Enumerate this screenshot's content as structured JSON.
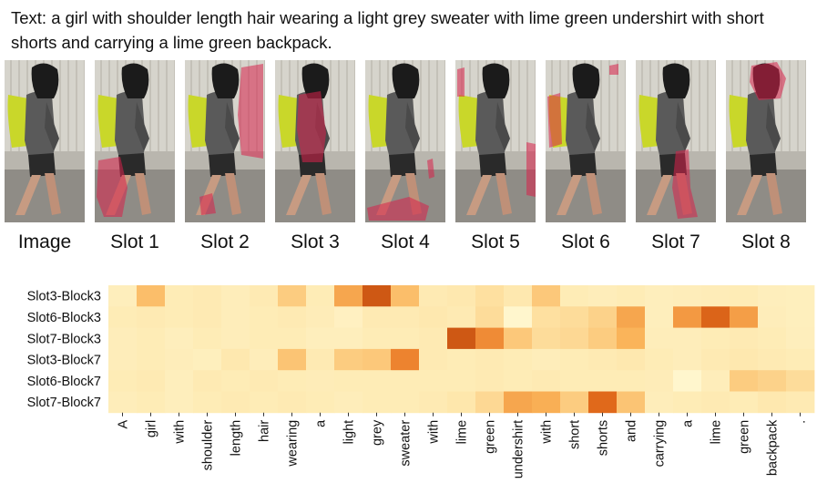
{
  "caption": "Text: a girl with shoulder length hair wearing a light grey sweater with lime green undershirt with short shorts and carrying a lime green backpack.",
  "panels": [
    {
      "label": "Image",
      "highlight": "none"
    },
    {
      "label": "Slot 1",
      "highlight": "legs"
    },
    {
      "label": "Slot 2",
      "highlight": "background-right"
    },
    {
      "label": "Slot 3",
      "highlight": "torso"
    },
    {
      "label": "Slot 4",
      "highlight": "ground"
    },
    {
      "label": "Slot 5",
      "highlight": "right-edge"
    },
    {
      "label": "Slot 6",
      "highlight": "backpack-left"
    },
    {
      "label": "Slot 7",
      "highlight": "leg-right"
    },
    {
      "label": "Slot 8",
      "highlight": "head"
    }
  ],
  "colors": {
    "attention_overlay": "#d8204a",
    "backpack": "#c9d72a",
    "sweater": "#5a5a5a",
    "low": "#fff7c8",
    "high": "#b33a06"
  },
  "chart_data": {
    "type": "heatmap",
    "rows": [
      "Slot3-Block3",
      "Slot6-Block3",
      "Slot7-Block3",
      "Slot3-Block7",
      "Slot6-Block7",
      "Slot7-Block7"
    ],
    "columns": [
      "A",
      "girl",
      "with",
      "shoulder",
      "length",
      "hair",
      "wearing",
      "a",
      "light",
      "grey",
      "sweater",
      "with",
      "lime",
      "green",
      "undershirt",
      "with",
      "short",
      "shorts",
      "and",
      "carrying",
      "a",
      "lime",
      "green",
      "backpack",
      "."
    ],
    "values": [
      [
        0.15,
        0.45,
        0.18,
        0.2,
        0.16,
        0.2,
        0.38,
        0.18,
        0.55,
        0.85,
        0.45,
        0.2,
        0.22,
        0.28,
        0.22,
        0.4,
        0.18,
        0.16,
        0.18,
        0.15,
        0.16,
        0.17,
        0.18,
        0.15,
        0.14
      ],
      [
        0.18,
        0.2,
        0.18,
        0.2,
        0.16,
        0.18,
        0.2,
        0.17,
        0.12,
        0.2,
        0.2,
        0.22,
        0.2,
        0.3,
        0.05,
        0.28,
        0.3,
        0.35,
        0.55,
        0.15,
        0.6,
        0.8,
        0.58,
        0.16,
        0.14
      ],
      [
        0.16,
        0.18,
        0.15,
        0.18,
        0.16,
        0.18,
        0.18,
        0.15,
        0.15,
        0.18,
        0.18,
        0.2,
        0.85,
        0.65,
        0.4,
        0.3,
        0.32,
        0.38,
        0.5,
        0.16,
        0.16,
        0.18,
        0.2,
        0.18,
        0.15
      ],
      [
        0.16,
        0.18,
        0.16,
        0.14,
        0.22,
        0.16,
        0.42,
        0.2,
        0.38,
        0.4,
        0.68,
        0.2,
        0.18,
        0.2,
        0.18,
        0.16,
        0.18,
        0.2,
        0.22,
        0.18,
        0.16,
        0.2,
        0.22,
        0.2,
        0.18
      ],
      [
        0.18,
        0.2,
        0.15,
        0.2,
        0.18,
        0.2,
        0.18,
        0.17,
        0.18,
        0.18,
        0.18,
        0.18,
        0.18,
        0.2,
        0.18,
        0.2,
        0.18,
        0.18,
        0.18,
        0.17,
        0.05,
        0.16,
        0.38,
        0.35,
        0.3
      ],
      [
        0.16,
        0.18,
        0.15,
        0.18,
        0.2,
        0.18,
        0.2,
        0.18,
        0.16,
        0.18,
        0.18,
        0.2,
        0.24,
        0.32,
        0.55,
        0.52,
        0.38,
        0.78,
        0.42,
        0.16,
        0.18,
        0.2,
        0.18,
        0.22,
        0.2
      ]
    ],
    "grid": false,
    "legend": "none"
  }
}
